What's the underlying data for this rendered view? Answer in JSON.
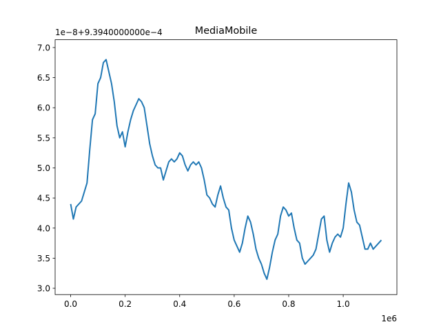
{
  "chart_data": {
    "type": "line",
    "title": "MediaMobile",
    "x_offset_label": "1e6",
    "y_offset_label": "1e−8+9.3940000000e−4",
    "xlim": [
      -0.057,
      1.197
    ],
    "ylim": [
      2.895,
      7.13
    ],
    "xticks": [
      {
        "value": 0,
        "label": "0.0"
      },
      0.2,
      0.4,
      0.6,
      0.8,
      {
        "value": 1,
        "label": "1.0"
      }
    ],
    "yticks": [
      {
        "value": 3,
        "label": "3.0"
      },
      3.5,
      {
        "value": 4,
        "label": "4.0"
      },
      4.5,
      {
        "value": 5,
        "label": "5.0"
      },
      5.5,
      {
        "value": 6,
        "label": "6.0"
      },
      6.5,
      {
        "value": 7,
        "label": "7.0"
      }
    ],
    "grid": false,
    "series": [
      {
        "color": "#1f77b4",
        "x": [
          0.0,
          0.01,
          0.02,
          0.04,
          0.05,
          0.06,
          0.07,
          0.08,
          0.09,
          0.1,
          0.11,
          0.12,
          0.13,
          0.14,
          0.15,
          0.16,
          0.17,
          0.18,
          0.19,
          0.2,
          0.21,
          0.22,
          0.23,
          0.24,
          0.25,
          0.26,
          0.27,
          0.28,
          0.29,
          0.3,
          0.31,
          0.32,
          0.33,
          0.34,
          0.35,
          0.36,
          0.37,
          0.38,
          0.39,
          0.4,
          0.41,
          0.42,
          0.43,
          0.44,
          0.45,
          0.46,
          0.47,
          0.48,
          0.49,
          0.5,
          0.51,
          0.52,
          0.53,
          0.54,
          0.55,
          0.56,
          0.57,
          0.58,
          0.59,
          0.6,
          0.61,
          0.62,
          0.63,
          0.64,
          0.65,
          0.66,
          0.67,
          0.68,
          0.69,
          0.7,
          0.71,
          0.72,
          0.73,
          0.74,
          0.75,
          0.76,
          0.77,
          0.78,
          0.79,
          0.8,
          0.81,
          0.82,
          0.83,
          0.84,
          0.85,
          0.86,
          0.87,
          0.88,
          0.89,
          0.9,
          0.91,
          0.92,
          0.93,
          0.94,
          0.95,
          0.96,
          0.97,
          0.98,
          0.99,
          1.0,
          1.01,
          1.02,
          1.03,
          1.04,
          1.05,
          1.06,
          1.07,
          1.08,
          1.09,
          1.1,
          1.11,
          1.12,
          1.13,
          1.14
        ],
        "values": [
          4.4,
          4.15,
          4.35,
          4.45,
          4.6,
          4.75,
          5.3,
          5.8,
          5.9,
          6.4,
          6.5,
          6.75,
          6.8,
          6.6,
          6.4,
          6.1,
          5.7,
          5.5,
          5.6,
          5.35,
          5.6,
          5.8,
          5.95,
          6.05,
          6.15,
          6.1,
          6.0,
          5.7,
          5.4,
          5.2,
          5.05,
          5.0,
          5.0,
          4.8,
          4.95,
          5.1,
          5.15,
          5.1,
          5.15,
          5.25,
          5.2,
          5.05,
          4.95,
          5.05,
          5.1,
          5.05,
          5.1,
          5.0,
          4.8,
          4.55,
          4.5,
          4.4,
          4.35,
          4.55,
          4.7,
          4.5,
          4.35,
          4.3,
          4.0,
          3.8,
          3.7,
          3.6,
          3.75,
          4.0,
          4.2,
          4.1,
          3.9,
          3.65,
          3.5,
          3.4,
          3.25,
          3.15,
          3.35,
          3.6,
          3.8,
          3.9,
          4.2,
          4.35,
          4.3,
          4.2,
          4.25,
          4.0,
          3.8,
          3.75,
          3.5,
          3.4,
          3.45,
          3.5,
          3.55,
          3.65,
          3.9,
          4.15,
          4.2,
          3.8,
          3.6,
          3.75,
          3.85,
          3.9,
          3.85,
          4.0,
          4.4,
          4.75,
          4.6,
          4.3,
          4.1,
          4.05,
          3.85,
          3.65,
          3.65,
          3.75,
          3.65,
          3.7,
          3.75,
          3.8
        ]
      }
    ]
  }
}
